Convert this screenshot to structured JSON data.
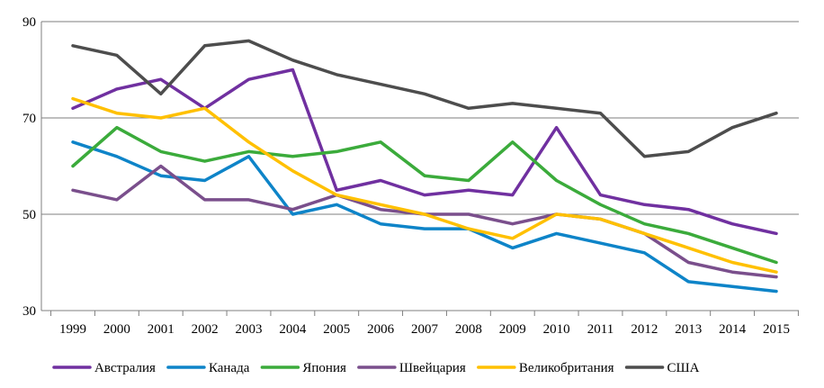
{
  "chart_data": {
    "type": "line",
    "title": "",
    "xlabel": "",
    "ylabel": "",
    "ylim": [
      30,
      90
    ],
    "y_ticks": [
      30,
      50,
      70,
      90
    ],
    "grid": true,
    "legend_position": "bottom",
    "categories": [
      "1999",
      "2000",
      "2001",
      "2002",
      "2003",
      "2004",
      "2005",
      "2006",
      "2007",
      "2008",
      "2009",
      "2010",
      "2011",
      "2012",
      "2013",
      "2014",
      "2015"
    ],
    "series": [
      {
        "name": "Австралия",
        "color": "#7030a0",
        "values": [
          72,
          76,
          78,
          72,
          78,
          80,
          55,
          57,
          54,
          55,
          54,
          68,
          54,
          52,
          51,
          48,
          46
        ]
      },
      {
        "name": "Канада",
        "color": "#0e84c8",
        "values": [
          65,
          62,
          58,
          57,
          62,
          50,
          52,
          48,
          47,
          47,
          43,
          46,
          44,
          42,
          36,
          35,
          34
        ]
      },
      {
        "name": "Япония",
        "color": "#3bab3b",
        "values": [
          60,
          68,
          63,
          61,
          63,
          62,
          63,
          65,
          58,
          57,
          65,
          57,
          52,
          48,
          46,
          43,
          40
        ]
      },
      {
        "name": "Швейцария",
        "color": "#7a4f8c",
        "values": [
          55,
          53,
          60,
          53,
          53,
          51,
          54,
          51,
          50,
          50,
          48,
          50,
          49,
          46,
          40,
          38,
          37
        ]
      },
      {
        "name": "Великобритания",
        "color": "#ffc000",
        "values": [
          74,
          71,
          70,
          72,
          65,
          59,
          54,
          52,
          50,
          47,
          45,
          50,
          49,
          46,
          43,
          40,
          38
        ]
      },
      {
        "name": "США",
        "color": "#4d4d4d",
        "values": [
          85,
          83,
          75,
          85,
          86,
          82,
          79,
          77,
          75,
          72,
          73,
          72,
          71,
          62,
          63,
          68,
          71
        ]
      }
    ]
  }
}
